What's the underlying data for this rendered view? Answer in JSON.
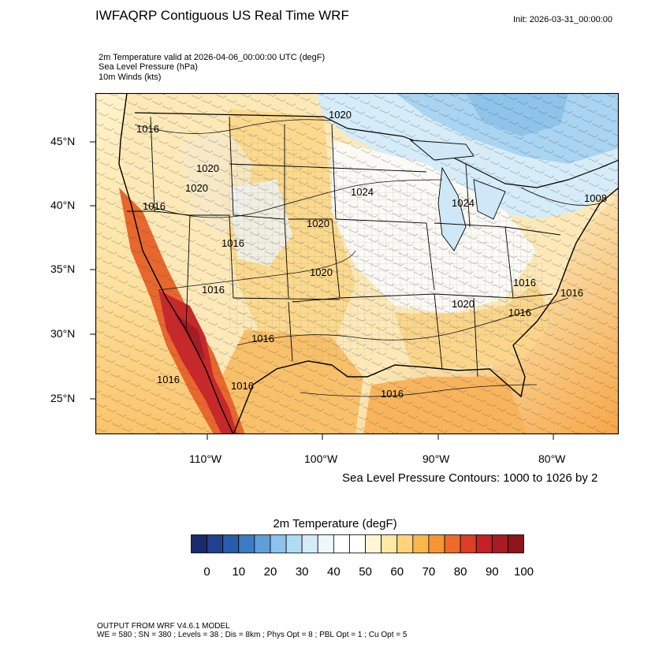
{
  "header": {
    "title": "IWFAQRP Contiguous US Real Time WRF",
    "init": "Init: 2026-03-31_00:00:00"
  },
  "fields": [
    "2m Temperature valid at 2026-04-06_00:00:00 UTC   (degF)",
    "Sea Level Pressure   (hPa)",
    "10m Winds   (kts)"
  ],
  "axes": {
    "lat_labels": [
      "45°N",
      "40°N",
      "35°N",
      "30°N",
      "25°N"
    ],
    "lon_labels": [
      "110°W",
      "100°W",
      "90°W",
      "80°W"
    ]
  },
  "isobar_labels": [
    "1016",
    "1020",
    "1020",
    "1024",
    "1024",
    "1008",
    "1016",
    "1020",
    "1020",
    "1016",
    "1016",
    "1020",
    "1016",
    "1016",
    "1020",
    "1016",
    "1016",
    "1016",
    "1016",
    "1016"
  ],
  "contour_note": "Sea Level Pressure Contours: 1000 to 1026 by 2",
  "colorbar": {
    "title": "2m Temperature  (degF)",
    "labels": [
      "0",
      "10",
      "20",
      "30",
      "40",
      "50",
      "60",
      "70",
      "80",
      "90",
      "100"
    ],
    "colors": [
      "#1a2a6c",
      "#22408f",
      "#2a5cad",
      "#3b7cc4",
      "#5f9fd8",
      "#8cc2ec",
      "#b0dbf5",
      "#d4ecf8",
      "#eef7fc",
      "#ffffff",
      "#ffffff",
      "#fff6d5",
      "#fde9a6",
      "#fdd37c",
      "#fbb54f",
      "#f69535",
      "#ec6a2a",
      "#dc3d26",
      "#c42027",
      "#a61c22",
      "#8c1519"
    ]
  },
  "footer": {
    "line1": "OUTPUT FROM WRF V4.6.1 MODEL",
    "line2": "WE = 580 ; SN = 380 ; Levels = 38 ; Dis = 8km ; Phys Opt = 8 ; PBL Opt = 1 ; Cu Opt = 5"
  }
}
